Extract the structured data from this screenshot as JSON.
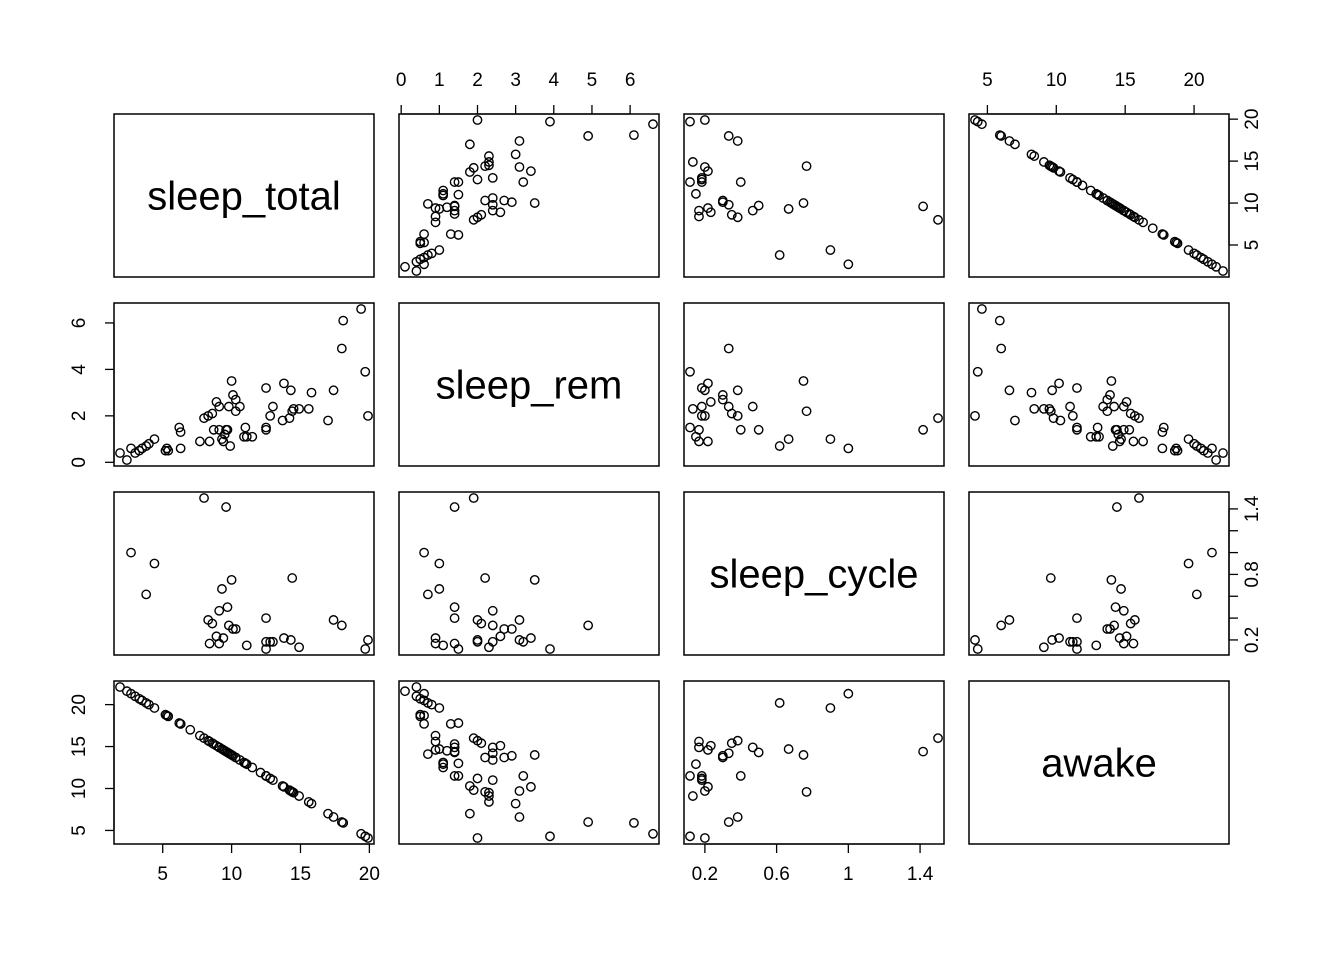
{
  "chart_data": {
    "type": "scatter",
    "variables": [
      "sleep_total",
      "sleep_rem",
      "sleep_cycle",
      "awake"
    ],
    "axis_ranges": {
      "sleep_total": [
        1.9,
        19.9
      ],
      "sleep_rem": [
        0.1,
        6.6
      ],
      "sleep_cycle": [
        0.117,
        1.5
      ],
      "awake": [
        4.1,
        22.1
      ]
    },
    "axis_ticks": {
      "sleep_total": [
        5,
        10,
        15,
        20
      ],
      "sleep_rem": [
        0,
        1,
        2,
        3,
        4,
        5,
        6
      ],
      "sleep_rem_left": [
        0,
        2,
        4,
        6
      ],
      "sleep_cycle": [
        0.2,
        0.6,
        1.0,
        1.4
      ],
      "sleep_cycle_right": [
        0.2,
        0.4,
        0.6,
        0.8,
        1.0,
        1.2,
        1.4
      ],
      "sleep_cycle_right_labeled": [
        0.2,
        0.8,
        1.4
      ],
      "awake": [
        5,
        10,
        15,
        20
      ]
    },
    "pairs": [
      {
        "sleep_total": 1.9,
        "sleep_rem": 0.4,
        "sleep_cycle": null,
        "awake": 22.1
      },
      {
        "sleep_total": 2.4,
        "sleep_rem": 0.1,
        "sleep_cycle": null,
        "awake": 21.6
      },
      {
        "sleep_total": 2.7,
        "sleep_rem": 0.6,
        "sleep_cycle": 1.0,
        "awake": 21.3
      },
      {
        "sleep_total": 3.0,
        "sleep_rem": 0.4,
        "sleep_cycle": null,
        "awake": 21.0
      },
      {
        "sleep_total": 3.3,
        "sleep_rem": 0.5,
        "sleep_cycle": null,
        "awake": 20.7
      },
      {
        "sleep_total": 3.5,
        "sleep_rem": 0.6,
        "sleep_cycle": null,
        "awake": 20.5
      },
      {
        "sleep_total": 3.8,
        "sleep_rem": 0.7,
        "sleep_cycle": 0.617,
        "awake": 20.2
      },
      {
        "sleep_total": 4.0,
        "sleep_rem": 0.8,
        "sleep_cycle": null,
        "awake": 20.0
      },
      {
        "sleep_total": 4.4,
        "sleep_rem": 1.0,
        "sleep_cycle": 0.9,
        "awake": 19.6
      },
      {
        "sleep_total": 5.2,
        "sleep_rem": 0.5,
        "sleep_cycle": null,
        "awake": 18.8
      },
      {
        "sleep_total": 5.3,
        "sleep_rem": 0.6,
        "sleep_cycle": null,
        "awake": 18.7
      },
      {
        "sleep_total": 5.4,
        "sleep_rem": 0.5,
        "sleep_cycle": null,
        "awake": 18.6
      },
      {
        "sleep_total": 6.2,
        "sleep_rem": 1.5,
        "sleep_cycle": null,
        "awake": 17.8
      },
      {
        "sleep_total": 6.3,
        "sleep_rem": 0.6,
        "sleep_cycle": null,
        "awake": 17.7
      },
      {
        "sleep_total": 6.3,
        "sleep_rem": 1.3,
        "sleep_cycle": null,
        "awake": 17.7
      },
      {
        "sleep_total": 7.0,
        "sleep_rem": null,
        "sleep_cycle": null,
        "awake": 17.0
      },
      {
        "sleep_total": 7.7,
        "sleep_rem": 0.9,
        "sleep_cycle": null,
        "awake": 16.3
      },
      {
        "sleep_total": 8.0,
        "sleep_rem": 1.9,
        "sleep_cycle": 1.5,
        "awake": 16.0
      },
      {
        "sleep_total": 8.3,
        "sleep_rem": 2.0,
        "sleep_cycle": 0.383,
        "awake": 15.7
      },
      {
        "sleep_total": 8.4,
        "sleep_rem": 0.9,
        "sleep_cycle": 0.167,
        "awake": 15.6
      },
      {
        "sleep_total": 8.6,
        "sleep_rem": 2.1,
        "sleep_cycle": 0.35,
        "awake": 15.4
      },
      {
        "sleep_total": 8.7,
        "sleep_rem": 1.4,
        "sleep_cycle": null,
        "awake": 15.3
      },
      {
        "sleep_total": 8.9,
        "sleep_rem": 2.6,
        "sleep_cycle": 0.233,
        "awake": 15.1
      },
      {
        "sleep_total": 9.1,
        "sleep_rem": 1.4,
        "sleep_cycle": 0.167,
        "awake": 14.9
      },
      {
        "sleep_total": 9.1,
        "sleep_rem": 2.4,
        "sleep_cycle": 0.467,
        "awake": 14.9
      },
      {
        "sleep_total": 9.3,
        "sleep_rem": 1.0,
        "sleep_cycle": 0.667,
        "awake": 14.7
      },
      {
        "sleep_total": 9.4,
        "sleep_rem": 0.9,
        "sleep_cycle": 0.217,
        "awake": 14.6
      },
      {
        "sleep_total": 9.5,
        "sleep_rem": 1.2,
        "sleep_cycle": null,
        "awake": 14.5
      },
      {
        "sleep_total": 9.6,
        "sleep_rem": 1.4,
        "sleep_cycle": 1.417,
        "awake": 14.4
      },
      {
        "sleep_total": 9.7,
        "sleep_rem": 1.4,
        "sleep_cycle": 0.5,
        "awake": 14.3
      },
      {
        "sleep_total": 9.8,
        "sleep_rem": 2.4,
        "sleep_cycle": 0.333,
        "awake": 14.2
      },
      {
        "sleep_total": 9.9,
        "sleep_rem": 0.7,
        "sleep_cycle": null,
        "awake": 14.1
      },
      {
        "sleep_total": 10.0,
        "sleep_rem": 3.5,
        "sleep_cycle": 0.75,
        "awake": 14.0
      },
      {
        "sleep_total": 10.1,
        "sleep_rem": 2.9,
        "sleep_cycle": 0.3,
        "awake": 13.9
      },
      {
        "sleep_total": 10.3,
        "sleep_rem": 2.7,
        "sleep_cycle": 0.3,
        "awake": 13.7
      },
      {
        "sleep_total": 10.3,
        "sleep_rem": 2.2,
        "sleep_cycle": null,
        "awake": 13.7
      },
      {
        "sleep_total": 10.6,
        "sleep_rem": 2.4,
        "sleep_cycle": null,
        "awake": 13.4
      },
      {
        "sleep_total": 10.9,
        "sleep_rem": 1.1,
        "sleep_cycle": null,
        "awake": 13.1
      },
      {
        "sleep_total": 11.0,
        "sleep_rem": 1.5,
        "sleep_cycle": null,
        "awake": 13.0
      },
      {
        "sleep_total": 11.1,
        "sleep_rem": 1.1,
        "sleep_cycle": 0.15,
        "awake": 12.9
      },
      {
        "sleep_total": 11.5,
        "sleep_rem": 1.1,
        "sleep_cycle": null,
        "awake": 12.5
      },
      {
        "sleep_total": 12.1,
        "sleep_rem": null,
        "sleep_cycle": null,
        "awake": 11.9
      },
      {
        "sleep_total": 12.5,
        "sleep_rem": 1.5,
        "sleep_cycle": 0.117,
        "awake": 11.5
      },
      {
        "sleep_total": 12.5,
        "sleep_rem": 3.2,
        "sleep_cycle": 0.183,
        "awake": 11.5
      },
      {
        "sleep_total": 12.5,
        "sleep_rem": 1.4,
        "sleep_cycle": 0.4,
        "awake": 11.5
      },
      {
        "sleep_total": 12.8,
        "sleep_rem": 2.0,
        "sleep_cycle": 0.183,
        "awake": 11.2
      },
      {
        "sleep_total": 13.0,
        "sleep_rem": 2.4,
        "sleep_cycle": 0.183,
        "awake": 11.0
      },
      {
        "sleep_total": 13.7,
        "sleep_rem": 1.8,
        "sleep_cycle": null,
        "awake": 10.3
      },
      {
        "sleep_total": 13.8,
        "sleep_rem": 3.4,
        "sleep_cycle": 0.217,
        "awake": 10.2
      },
      {
        "sleep_total": 14.2,
        "sleep_rem": 1.9,
        "sleep_cycle": null,
        "awake": 9.8
      },
      {
        "sleep_total": 14.3,
        "sleep_rem": 3.1,
        "sleep_cycle": 0.2,
        "awake": 9.7
      },
      {
        "sleep_total": 14.4,
        "sleep_rem": 2.2,
        "sleep_cycle": 0.767,
        "awake": 9.6
      },
      {
        "sleep_total": 14.5,
        "sleep_rem": 2.3,
        "sleep_cycle": null,
        "awake": 9.5
      },
      {
        "sleep_total": 14.9,
        "sleep_rem": 2.3,
        "sleep_cycle": 0.133,
        "awake": 9.1
      },
      {
        "sleep_total": 15.6,
        "sleep_rem": 2.3,
        "sleep_cycle": null,
        "awake": 8.4
      },
      {
        "sleep_total": 15.8,
        "sleep_rem": 3.0,
        "sleep_cycle": null,
        "awake": 8.2
      },
      {
        "sleep_total": 17.0,
        "sleep_rem": 1.8,
        "sleep_cycle": null,
        "awake": 7.0
      },
      {
        "sleep_total": 17.4,
        "sleep_rem": 3.1,
        "sleep_cycle": 0.383,
        "awake": 6.6
      },
      {
        "sleep_total": 18.0,
        "sleep_rem": 4.9,
        "sleep_cycle": 0.333,
        "awake": 6.0
      },
      {
        "sleep_total": 18.1,
        "sleep_rem": 6.1,
        "sleep_cycle": null,
        "awake": 5.9
      },
      {
        "sleep_total": 19.4,
        "sleep_rem": 6.6,
        "sleep_cycle": null,
        "awake": 4.6
      },
      {
        "sleep_total": 19.7,
        "sleep_rem": 3.9,
        "sleep_cycle": 0.117,
        "awake": 4.3
      },
      {
        "sleep_total": 19.9,
        "sleep_rem": 2.0,
        "sleep_cycle": 0.2,
        "awake": 4.1
      }
    ]
  }
}
